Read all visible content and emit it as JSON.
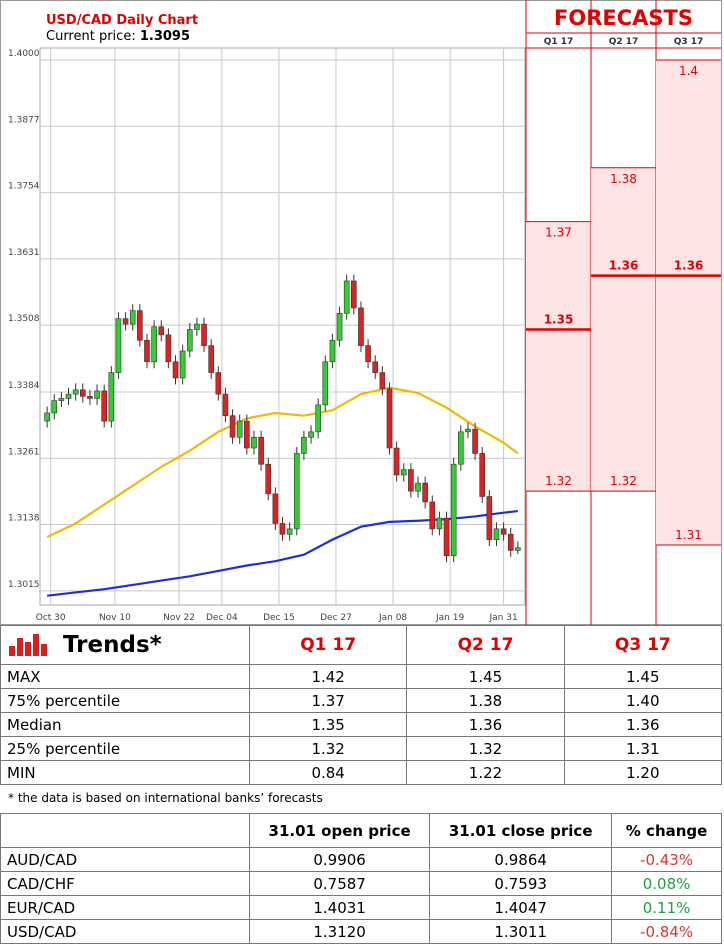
{
  "chart_data": {
    "type": "candlestick",
    "title": "USD/CAD Daily Chart",
    "subtitle": "Current price:",
    "current_price": 1.3095,
    "open": [
      1.333,
      1.3345,
      1.3368,
      1.3372,
      1.338,
      1.3388,
      1.3376,
      1.3372,
      1.3386,
      1.333,
      1.342,
      1.352,
      1.351,
      1.3535,
      1.348,
      1.344,
      1.3505,
      1.349,
      1.344,
      1.341,
      1.346,
      1.35,
      1.351,
      1.347,
      1.342,
      1.338,
      1.334,
      1.33,
      1.333,
      1.328,
      1.33,
      1.325,
      1.3195,
      1.314,
      1.312,
      1.313,
      1.327,
      1.33,
      1.331,
      1.336,
      1.344,
      1.348,
      1.353,
      1.359,
      1.354,
      1.347,
      1.344,
      1.342,
      1.339,
      1.328,
      1.323,
      1.324,
      1.32,
      1.3215,
      1.318,
      1.313,
      1.315,
      1.308,
      1.325,
      1.331,
      1.3315,
      1.327,
      1.319,
      1.311,
      1.313,
      1.312,
      1.309
    ],
    "high": [
      1.3357,
      1.338,
      1.3384,
      1.3392,
      1.34,
      1.34,
      1.3388,
      1.3398,
      1.3398,
      1.3432,
      1.3532,
      1.3532,
      1.3547,
      1.3547,
      1.3492,
      1.3517,
      1.3517,
      1.3502,
      1.3452,
      1.3472,
      1.3512,
      1.3522,
      1.3522,
      1.3482,
      1.3432,
      1.3392,
      1.3352,
      1.3342,
      1.3342,
      1.3312,
      1.3312,
      1.3262,
      1.3207,
      1.3152,
      1.3142,
      1.3282,
      1.3312,
      1.3322,
      1.3372,
      1.3452,
      1.3492,
      1.3542,
      1.3602,
      1.3602,
      1.3552,
      1.3482,
      1.3452,
      1.3432,
      1.3402,
      1.3292,
      1.3252,
      1.3252,
      1.3227,
      1.3227,
      1.3192,
      1.3162,
      1.3162,
      1.3262,
      1.3322,
      1.3327,
      1.3327,
      1.3282,
      1.3202,
      1.3142,
      1.3142,
      1.3132,
      1.3107
    ],
    "low": [
      1.3318,
      1.3333,
      1.3356,
      1.336,
      1.3368,
      1.3364,
      1.336,
      1.336,
      1.3318,
      1.3318,
      1.3408,
      1.3498,
      1.3498,
      1.3468,
      1.3428,
      1.3428,
      1.3478,
      1.3428,
      1.3398,
      1.3398,
      1.3448,
      1.3488,
      1.3458,
      1.3408,
      1.3368,
      1.3328,
      1.3288,
      1.3288,
      1.3268,
      1.3268,
      1.3238,
      1.3183,
      1.3128,
      1.3108,
      1.3108,
      1.3118,
      1.3258,
      1.3288,
      1.3298,
      1.3348,
      1.3428,
      1.3468,
      1.3518,
      1.3528,
      1.3458,
      1.3428,
      1.3408,
      1.3378,
      1.3268,
      1.3218,
      1.3218,
      1.3188,
      1.3188,
      1.3168,
      1.3118,
      1.3118,
      1.3068,
      1.3068,
      1.3238,
      1.3298,
      1.3258,
      1.3178,
      1.3098,
      1.3098,
      1.3108,
      1.3078,
      1.3083
    ],
    "close": [
      1.3345,
      1.3368,
      1.3372,
      1.338,
      1.3388,
      1.3376,
      1.3372,
      1.3386,
      1.333,
      1.342,
      1.352,
      1.351,
      1.3535,
      1.348,
      1.344,
      1.3505,
      1.349,
      1.344,
      1.341,
      1.346,
      1.35,
      1.351,
      1.347,
      1.342,
      1.338,
      1.334,
      1.33,
      1.333,
      1.328,
      1.33,
      1.325,
      1.3195,
      1.314,
      1.312,
      1.313,
      1.327,
      1.33,
      1.331,
      1.336,
      1.344,
      1.348,
      1.353,
      1.359,
      1.354,
      1.347,
      1.344,
      1.342,
      1.339,
      1.328,
      1.323,
      1.324,
      1.32,
      1.3215,
      1.318,
      1.313,
      1.315,
      1.308,
      1.325,
      1.331,
      1.3315,
      1.327,
      1.319,
      1.311,
      1.313,
      1.312,
      1.309,
      1.3095
    ],
    "up_color": "#33cc33",
    "down_color": "#dd2222",
    "series": [
      {
        "color": "#f5b800",
        "x": [
          0,
          4,
          8,
          12,
          16,
          20,
          24,
          28,
          32,
          36,
          40,
          44,
          48,
          52,
          56,
          60,
          64,
          66
        ],
        "values": [
          1.3115,
          1.314,
          1.3175,
          1.321,
          1.3245,
          1.3275,
          1.331,
          1.3335,
          1.3345,
          1.334,
          1.335,
          1.338,
          1.3392,
          1.3382,
          1.3355,
          1.332,
          1.329,
          1.327
        ]
      },
      {
        "color": "#1f2fd6",
        "x": [
          0,
          4,
          8,
          12,
          16,
          20,
          24,
          28,
          32,
          36,
          40,
          44,
          48,
          52,
          56,
          60,
          64,
          66
        ],
        "values": [
          1.3006,
          1.3012,
          1.3018,
          1.3026,
          1.3034,
          1.3042,
          1.3052,
          1.3062,
          1.307,
          1.3082,
          1.311,
          1.3134,
          1.3143,
          1.3145,
          1.3148,
          1.3153,
          1.316,
          1.3163
        ]
      }
    ],
    "ylim": [
      1.2998,
      1.4
    ],
    "yticks": [
      {
        "value": 1.4,
        "label": "1.4000"
      },
      1.3877,
      1.3754,
      1.3631,
      1.3508,
      1.3384,
      1.3261,
      1.3138,
      1.3015
    ],
    "xlim": [
      -1,
      67
    ],
    "xticks": [
      {
        "value": 0.5,
        "label": "Oct 30"
      },
      {
        "value": 9.5,
        "label": "Nov 10"
      },
      {
        "value": 18.5,
        "label": "Nov 22"
      },
      {
        "value": 24.5,
        "label": "Dec 04"
      },
      {
        "value": 32.5,
        "label": "Dec 15"
      },
      {
        "value": 40.5,
        "label": "Dec 27"
      },
      {
        "value": 48.5,
        "label": "Jan 08"
      },
      {
        "value": 56.5,
        "label": "Jan 19"
      },
      {
        "value": 64,
        "label": "Jan 31"
      }
    ],
    "grid": true,
    "forecasts": {
      "title": "FORECASTS",
      "columns": [
        "Q1 17",
        "Q2 17",
        "Q3 17"
      ],
      "p75": [
        1.37,
        1.38,
        1.4
      ],
      "median": [
        1.35,
        1.36,
        1.36
      ],
      "p25": [
        1.32,
        1.32,
        1.31
      ],
      "color": "#e00000"
    }
  },
  "trends": {
    "title": "Trends*",
    "columns": [
      "Q1 17",
      "Q2 17",
      "Q3 17"
    ],
    "rows": [
      [
        "MAX",
        "1.42",
        "1.45",
        "1.45"
      ],
      [
        "75% percentile",
        "1.37",
        "1.38",
        "1.40"
      ],
      [
        "Median",
        "1.35",
        "1.36",
        "1.36"
      ],
      [
        "25% percentile",
        "1.32",
        "1.32",
        "1.31"
      ],
      [
        "MIN",
        "0.84",
        "1.22",
        "1.20"
      ]
    ],
    "footnote": "* the data is based on international banks’ forecasts"
  },
  "prices": {
    "columns": [
      "31.01 open price",
      "31.01 close price",
      "% change"
    ],
    "rows": [
      [
        "AUD/CAD",
        "0.9906",
        "0.9864",
        "-0.43%"
      ],
      [
        "CAD/CHF",
        "0.7587",
        "0.7593",
        "0.08%"
      ],
      [
        "EUR/CAD",
        "1.4031",
        "1.4047",
        "0.11%"
      ],
      [
        "USD/CAD",
        "1.3120",
        "1.3011",
        "-0.84%"
      ]
    ],
    "neg_color": "#e03030",
    "pos_color": "#22a040"
  }
}
